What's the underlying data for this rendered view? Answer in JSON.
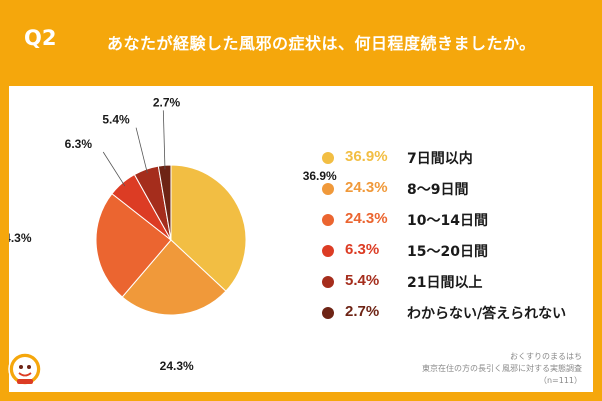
{
  "header": {
    "qnum": "Q2",
    "question": "あなたが経験した風邪の症状は、何日程度続きましたか。"
  },
  "colors": {
    "background": "#F5A70C",
    "card": "#FFFFFF"
  },
  "chart_data": {
    "type": "pie",
    "title": "",
    "series": [
      {
        "name": "7日間以内",
        "value": 36.9,
        "label": "36.9%",
        "color": "#F2BE43"
      },
      {
        "name": "8〜9日間",
        "value": 24.3,
        "label": "24.3%",
        "color": "#F0993A"
      },
      {
        "name": "10〜14日間",
        "value": 24.3,
        "label": "24.3%",
        "color": "#EB6530"
      },
      {
        "name": "15〜20日間",
        "value": 6.3,
        "label": "6.3%",
        "color": "#DC3C24"
      },
      {
        "name": "21日間以上",
        "value": 5.4,
        "label": "5.4%",
        "color": "#A52D1C"
      },
      {
        "name": "わからない/答えられない",
        "value": 2.7,
        "label": "2.7%",
        "color": "#6E2415"
      }
    ],
    "legend_position": "right"
  },
  "source": {
    "line1": "おくすりのまるはち",
    "line2": "東京在住の方の長引く風邪に対する実態調査",
    "line3": "（n=111）"
  },
  "logo": {
    "icon": "pharmacy-mascot-logo"
  }
}
